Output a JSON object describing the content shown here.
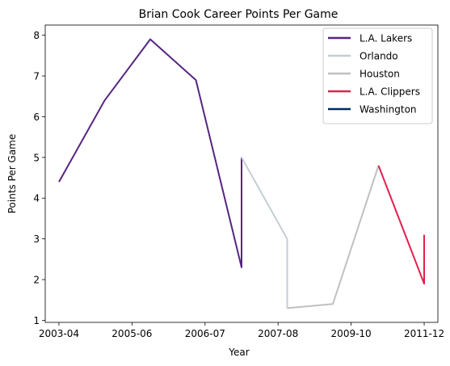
{
  "chart_data": {
    "type": "line",
    "title": "Brian Cook Career Points Per Game",
    "xlabel": "Year",
    "ylabel": "Points Per Game",
    "x_ticks": [
      "2003-04",
      "2005-06",
      "2006-07",
      "2007-08",
      "2009-10",
      "2011-12"
    ],
    "y_ticks": [
      1,
      2,
      3,
      4,
      5,
      6,
      7,
      8
    ],
    "ylim": [
      0.95,
      8.25
    ],
    "xlim": [
      -0.3,
      8.3
    ],
    "legend_position": "upper right",
    "grid": false,
    "series": [
      {
        "name": "L.A. Lakers",
        "color": "#552583",
        "points": [
          [
            0,
            4.4
          ],
          [
            1,
            6.4
          ],
          [
            2,
            7.9
          ],
          [
            3,
            6.9
          ],
          [
            4,
            2.3
          ],
          [
            4,
            5.0
          ]
        ]
      },
      {
        "name": "Orlando",
        "color": "#C4CED4",
        "points": [
          [
            4,
            5.0
          ],
          [
            5,
            3.0
          ],
          [
            5,
            1.3
          ]
        ]
      },
      {
        "name": "Houston",
        "color": "#BEC0C2",
        "points": [
          [
            5,
            1.3
          ],
          [
            6,
            1.4
          ],
          [
            7,
            4.8
          ]
        ]
      },
      {
        "name": "L.A. Clippers",
        "color": "#E2204D",
        "points": [
          [
            7,
            4.8
          ],
          [
            8,
            1.9
          ],
          [
            8,
            3.1
          ]
        ]
      },
      {
        "name": "Washington",
        "color": "#002B5C",
        "points": []
      }
    ]
  }
}
